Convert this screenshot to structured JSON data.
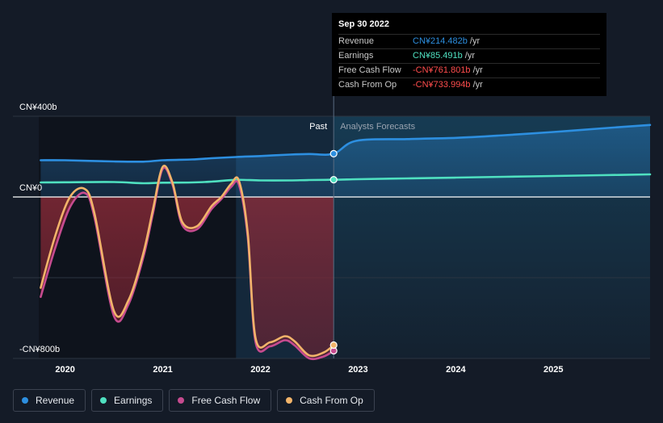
{
  "chart_data": {
    "type": "area",
    "y_tick_labels": {
      "top": "CN¥400b",
      "zero": "CN¥0",
      "bottom": "-CN¥800b"
    },
    "ylim": [
      -800,
      400
    ],
    "xlim": [
      2019.73,
      2025.99
    ],
    "x_ticks": [
      2020,
      2021,
      2022,
      2023,
      2024,
      2025
    ],
    "divider_x": 2022.75,
    "past_label": "Past",
    "forecast_label": "Analysts Forecasts",
    "series": [
      {
        "name": "Revenue",
        "color": "#2d8fe0",
        "x": [
          2019.75,
          2020.0,
          2020.5,
          2020.8,
          2021.0,
          2021.3,
          2021.5,
          2021.75,
          2022.0,
          2022.3,
          2022.5,
          2022.75,
          2022.98,
          2023.5,
          2024.0,
          2024.5,
          2025.0,
          2025.5,
          2025.99
        ],
        "values": [
          182,
          182,
          176,
          175,
          182,
          186,
          192,
          198,
          203,
          210,
          213,
          214.482,
          278,
          287,
          293,
          306,
          322,
          340,
          357
        ]
      },
      {
        "name": "Earnings",
        "color": "#4fe0c0",
        "x": [
          2019.75,
          2020.0,
          2020.5,
          2020.8,
          2021.0,
          2021.3,
          2021.5,
          2021.75,
          2022.0,
          2022.3,
          2022.5,
          2022.75,
          2023.0,
          2023.5,
          2024.0,
          2024.5,
          2025.0,
          2025.5,
          2025.99
        ],
        "values": [
          72,
          73,
          74,
          68,
          71,
          72,
          76,
          85,
          82,
          82,
          84,
          85.491,
          88,
          92,
          96,
          100,
          104,
          108,
          112
        ]
      },
      {
        "name": "Free Cash Flow",
        "color": "#c64b8f",
        "x": [
          2019.75,
          2019.9,
          2020.05,
          2020.2,
          2020.3,
          2020.5,
          2020.65,
          2020.8,
          2020.9,
          2021.0,
          2021.1,
          2021.2,
          2021.35,
          2021.5,
          2021.6,
          2021.7,
          2021.78,
          2021.87,
          2021.95,
          2022.1,
          2022.25,
          2022.35,
          2022.5,
          2022.65,
          2022.75
        ],
        "values": [
          -495,
          -250,
          -50,
          20,
          -100,
          -590,
          -530,
          -300,
          -80,
          140,
          60,
          -140,
          -160,
          -60,
          -10,
          50,
          60,
          -200,
          -720,
          -740,
          -710,
          -735,
          -800,
          -790,
          -762
        ]
      },
      {
        "name": "Cash From Op",
        "color": "#f2b46a",
        "x": [
          2019.75,
          2019.9,
          2020.05,
          2020.2,
          2020.3,
          2020.5,
          2020.65,
          2020.8,
          2020.9,
          2021.0,
          2021.1,
          2021.2,
          2021.35,
          2021.5,
          2021.6,
          2021.7,
          2021.78,
          2021.87,
          2021.95,
          2022.1,
          2022.25,
          2022.35,
          2022.5,
          2022.65,
          2022.75
        ],
        "values": [
          -450,
          -190,
          0,
          40,
          -80,
          -565,
          -510,
          -280,
          -60,
          150,
          70,
          -125,
          -145,
          -45,
          0,
          65,
          80,
          -180,
          -700,
          -720,
          -690,
          -715,
          -785,
          -770,
          -734
        ]
      }
    ]
  },
  "tooltip": {
    "date": "Sep 30 2022",
    "rows": [
      {
        "label": "Revenue",
        "value": "CN¥214.482b",
        "unit": "/yr",
        "color": "#2d8fe0"
      },
      {
        "label": "Earnings",
        "value": "CN¥85.491b",
        "unit": "/yr",
        "color": "#4fe0c0"
      },
      {
        "label": "Free Cash Flow",
        "value": "-CN¥761.801b",
        "unit": "/yr",
        "color": "#ff4d4d"
      },
      {
        "label": "Cash From Op",
        "value": "-CN¥733.994b",
        "unit": "/yr",
        "color": "#ff4d4d"
      }
    ]
  },
  "legend": [
    {
      "label": "Revenue",
      "color": "#2d8fe0"
    },
    {
      "label": "Earnings",
      "color": "#4fe0c0"
    },
    {
      "label": "Free Cash Flow",
      "color": "#c64b8f"
    },
    {
      "label": "Cash From Op",
      "color": "#f2b46a"
    }
  ]
}
